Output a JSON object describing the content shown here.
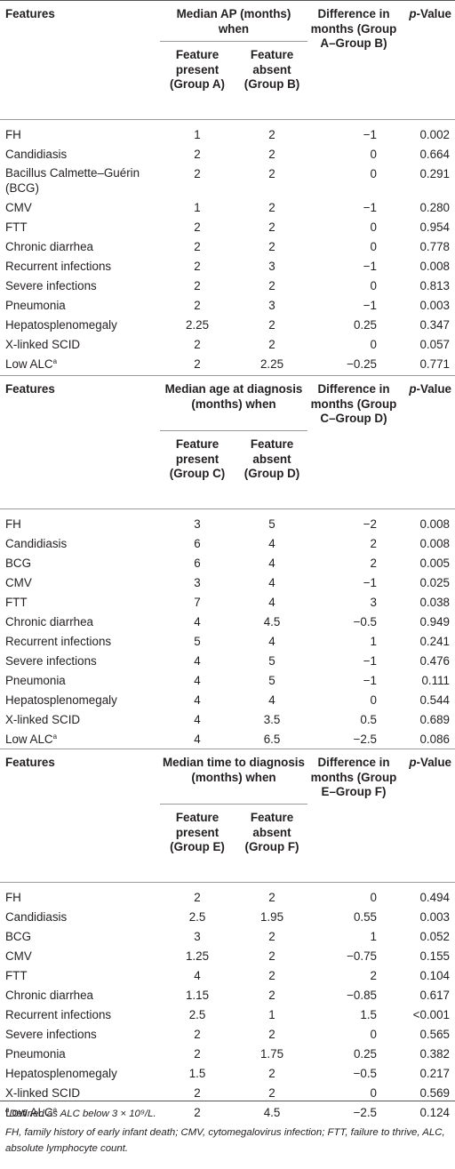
{
  "sections": [
    {
      "header": {
        "features": "Features",
        "median": "Median AP (months) when",
        "difference": "Difference in months (Group A–Group B)",
        "pvalue": "p-Value",
        "group_present": "Feature present (Group A)",
        "group_absent": "Feature absent (Group B)"
      },
      "rows": [
        {
          "feature": "FH",
          "present": "1",
          "absent": "2",
          "difference": "−1",
          "p": "0.002"
        },
        {
          "feature": "Candidiasis",
          "present": "2",
          "absent": "2",
          "difference": "0",
          "p": "0.664"
        },
        {
          "feature": "Bacillus Calmette–Guérin (BCG)",
          "present": "2",
          "absent": "2",
          "difference": "0",
          "p": "0.291"
        },
        {
          "feature": "CMV",
          "present": "1",
          "absent": "2",
          "difference": "−1",
          "p": "0.280"
        },
        {
          "feature": "FTT",
          "present": "2",
          "absent": "2",
          "difference": "0",
          "p": "0.954"
        },
        {
          "feature": "Chronic diarrhea",
          "present": "2",
          "absent": "2",
          "difference": "0",
          "p": "0.778"
        },
        {
          "feature": "Recurrent infections",
          "present": "2",
          "absent": "3",
          "difference": "−1",
          "p": "0.008"
        },
        {
          "feature": "Severe infections",
          "present": "2",
          "absent": "2",
          "difference": "0",
          "p": "0.813"
        },
        {
          "feature": "Pneumonia",
          "present": "2",
          "absent": "3",
          "difference": "−1",
          "p": "0.003"
        },
        {
          "feature": "Hepatosplenomegaly",
          "present": "2.25",
          "absent": "2",
          "difference": "0.25",
          "p": "0.347"
        },
        {
          "feature": "X-linked SCID",
          "present": "2",
          "absent": "2",
          "difference": "0",
          "p": "0.057"
        },
        {
          "feature": "Low ALC",
          "sup": "a",
          "present": "2",
          "absent": "2.25",
          "difference": "−0.25",
          "p": "0.771"
        }
      ]
    },
    {
      "header": {
        "features": "Features",
        "median": "Median age at diagnosis (months) when",
        "difference": "Difference in months (Group C–Group D)",
        "pvalue": "p-Value",
        "group_present": "Feature present (Group C)",
        "group_absent": "Feature absent (Group D)"
      },
      "rows": [
        {
          "feature": "FH",
          "present": "3",
          "absent": "5",
          "difference": "−2",
          "p": "0.008"
        },
        {
          "feature": "Candidiasis",
          "present": "6",
          "absent": "4",
          "difference": "2",
          "p": "0.008"
        },
        {
          "feature": "BCG",
          "present": "6",
          "absent": "4",
          "difference": "2",
          "p": "0.005"
        },
        {
          "feature": "CMV",
          "present": "3",
          "absent": "4",
          "difference": "−1",
          "p": "0.025"
        },
        {
          "feature": "FTT",
          "present": "7",
          "absent": "4",
          "difference": "3",
          "p": "0.038"
        },
        {
          "feature": "Chronic diarrhea",
          "present": "4",
          "absent": "4.5",
          "difference": "−0.5",
          "p": "0.949"
        },
        {
          "feature": "Recurrent infections",
          "present": "5",
          "absent": "4",
          "difference": "1",
          "p": "0.241"
        },
        {
          "feature": "Severe infections",
          "present": "4",
          "absent": "5",
          "difference": "−1",
          "p": "0.476"
        },
        {
          "feature": "Pneumonia",
          "present": "4",
          "absent": "5",
          "difference": "−1",
          "p": "0.111"
        },
        {
          "feature": "Hepatosplenomegaly",
          "present": "4",
          "absent": "4",
          "difference": "0",
          "p": "0.544"
        },
        {
          "feature": "X-linked SCID",
          "present": "4",
          "absent": "3.5",
          "difference": "0.5",
          "p": "0.689"
        },
        {
          "feature": "Low ALC",
          "sup": "a",
          "present": "4",
          "absent": "6.5",
          "difference": "−2.5",
          "p": "0.086"
        }
      ]
    },
    {
      "header": {
        "features": "Features",
        "median": "Median time to diagnosis (months) when",
        "difference": "Difference in months (Group E–Group F)",
        "pvalue": "p-Value",
        "group_present": "Feature present (Group E)",
        "group_absent": "Feature absent (Group F)"
      },
      "rows": [
        {
          "feature": "FH",
          "present": "2",
          "absent": "2",
          "difference": "0",
          "p": "0.494"
        },
        {
          "feature": "Candidiasis",
          "present": "2.5",
          "absent": "1.95",
          "difference": "0.55",
          "p": "0.003"
        },
        {
          "feature": "BCG",
          "present": "3",
          "absent": "2",
          "difference": "1",
          "p": "0.052"
        },
        {
          "feature": "CMV",
          "present": "1.25",
          "absent": "2",
          "difference": "−0.75",
          "p": "0.155"
        },
        {
          "feature": "FTT",
          "present": "4",
          "absent": "2",
          "difference": "2",
          "p": "0.104"
        },
        {
          "feature": "Chronic diarrhea",
          "present": "1.15",
          "absent": "2",
          "difference": "−0.85",
          "p": "0.617"
        },
        {
          "feature": "Recurrent infections",
          "present": "2.5",
          "absent": "1",
          "difference": "1.5",
          "p": "<0.001"
        },
        {
          "feature": "Severe infections",
          "present": "2",
          "absent": "2",
          "difference": "0",
          "p": "0.565"
        },
        {
          "feature": "Pneumonia",
          "present": "2",
          "absent": "1.75",
          "difference": "0.25",
          "p": "0.382"
        },
        {
          "feature": "Hepatosplenomegaly",
          "present": "1.5",
          "absent": "2",
          "difference": "−0.5",
          "p": "0.217"
        },
        {
          "feature": "X-linked SCID",
          "present": "2",
          "absent": "2",
          "difference": "0",
          "p": "0.569"
        },
        {
          "feature": "Low ALC",
          "sup": "a",
          "present": "2",
          "absent": "4.5",
          "difference": "−2.5",
          "p": "0.124"
        }
      ]
    }
  ],
  "footnotes": {
    "note_a_marker": "a",
    "note_a": "Defined as ALC below 3 × 10⁹/L.",
    "abbreviations": "FH, family history of early infant death; CMV, cytomegalovirus infection; FTT, failure to thrive, ALC, absolute lymphocyte count."
  }
}
